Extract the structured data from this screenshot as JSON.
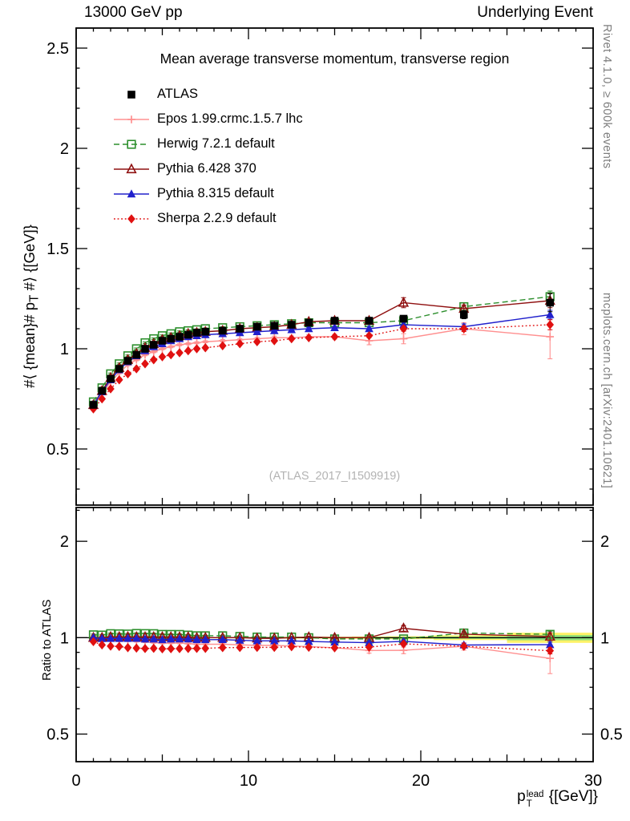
{
  "header": {
    "left": "13000 GeV pp",
    "right": "Underlying Event"
  },
  "side": {
    "top_right": "Rivet 4.1.0, ≥ 600k events",
    "bottom_right": "mcplots.cern.ch [arXiv:2401.10621]"
  },
  "main": {
    "title": "Mean average transverse momentum, transverse region",
    "watermark": "(ATLAS_2017_I1509919)"
  },
  "axes": {
    "y_label": {
      "prefix": "#⟨ {mean}# p",
      "sub": "T",
      "suffix": " #⟩ {[GeV]}"
    },
    "ratio_label": "Ratio to ATLAS",
    "x_label": {
      "base": "p",
      "sup": "lead",
      "sub": "T",
      "suffix": " {[GeV]}"
    }
  },
  "chart_data": {
    "type": "line",
    "title": "Mean average transverse momentum, transverse region",
    "xlabel": "pT lead [GeV]",
    "ylabel": "<mean pT> [GeV]",
    "ratio_ylabel": "Ratio to ATLAS",
    "legend_position": "top-left",
    "grid": false,
    "xlim": [
      0,
      30
    ],
    "ylim_main": [
      0.22,
      2.6
    ],
    "ylim_ratio": [
      0.41,
      2.55
    ],
    "ratio_log": true,
    "x_major_ticks": [
      0,
      10,
      20,
      30
    ],
    "x_medium_ticks": [
      5,
      15,
      25
    ],
    "x_minor_step": 1,
    "y_major_ticks": [
      0.5,
      1,
      1.5,
      2,
      2.5
    ],
    "y_minor_step": 0.1,
    "ratio_ticks": [
      0.5,
      1,
      2
    ],
    "ratio_minor_ticks": [
      0.6,
      0.7,
      0.8,
      0.9,
      2.5
    ],
    "band_color_outer": "#fff04d",
    "band_color_inner": "#7ddc7d",
    "reference": "ATLAS",
    "x": [
      1,
      1.5,
      2,
      2.5,
      3,
      3.5,
      4,
      4.5,
      5,
      5.5,
      6,
      6.5,
      7,
      7.5,
      8.5,
      9.5,
      10.5,
      11.5,
      12.5,
      13.5,
      15,
      17,
      19,
      22.5,
      27.5
    ],
    "series": [
      {
        "name": "ATLAS",
        "color": "#000000",
        "marker": "square-filled",
        "line": "none",
        "values": [
          0.72,
          0.79,
          0.85,
          0.9,
          0.94,
          0.97,
          1.0,
          1.02,
          1.04,
          1.05,
          1.06,
          1.07,
          1.08,
          1.085,
          1.09,
          1.1,
          1.11,
          1.115,
          1.12,
          1.13,
          1.14,
          1.14,
          1.15,
          1.17,
          1.23
        ],
        "errors": [
          0.005,
          0.005,
          0.005,
          0.005,
          0.005,
          0.005,
          0.005,
          0.005,
          0.005,
          0.005,
          0.005,
          0.005,
          0.005,
          0.005,
          0.005,
          0.005,
          0.005,
          0.006,
          0.007,
          0.007,
          0.008,
          0.01,
          0.012,
          0.02,
          0.045
        ]
      },
      {
        "name": "Epos 1.99.crmc.1.5.7 lhc",
        "color": "#ff9090",
        "marker": "cross-open",
        "line": "solid",
        "values": [
          0.71,
          0.775,
          0.835,
          0.88,
          0.92,
          0.945,
          0.97,
          0.985,
          1.0,
          1.01,
          1.02,
          1.025,
          1.03,
          1.035,
          1.04,
          1.045,
          1.05,
          1.055,
          1.055,
          1.06,
          1.06,
          1.04,
          1.05,
          1.1,
          1.06
        ],
        "errors": [
          0.005,
          0.005,
          0.005,
          0.005,
          0.005,
          0.005,
          0.005,
          0.005,
          0.005,
          0.005,
          0.005,
          0.005,
          0.005,
          0.005,
          0.006,
          0.006,
          0.007,
          0.008,
          0.009,
          0.01,
          0.012,
          0.02,
          0.025,
          0.03,
          0.11
        ]
      },
      {
        "name": "Herwig 7.2.1 default",
        "color": "#2d8f2d",
        "marker": "square-open",
        "line": "dashed",
        "values": [
          0.735,
          0.805,
          0.875,
          0.925,
          0.965,
          1.0,
          1.03,
          1.05,
          1.065,
          1.075,
          1.085,
          1.09,
          1.095,
          1.1,
          1.105,
          1.11,
          1.115,
          1.12,
          1.125,
          1.13,
          1.13,
          1.13,
          1.14,
          1.21,
          1.26
        ],
        "errors": [
          0.004,
          0.004,
          0.004,
          0.004,
          0.004,
          0.004,
          0.004,
          0.004,
          0.004,
          0.004,
          0.004,
          0.004,
          0.004,
          0.004,
          0.005,
          0.005,
          0.005,
          0.006,
          0.006,
          0.007,
          0.008,
          0.01,
          0.012,
          0.018,
          0.028
        ]
      },
      {
        "name": "Pythia 6.428 370",
        "color": "#8f1010",
        "marker": "triangle-open",
        "line": "solid",
        "values": [
          0.72,
          0.79,
          0.855,
          0.905,
          0.945,
          0.975,
          1.005,
          1.025,
          1.045,
          1.055,
          1.065,
          1.075,
          1.08,
          1.085,
          1.09,
          1.1,
          1.105,
          1.11,
          1.12,
          1.135,
          1.14,
          1.14,
          1.23,
          1.2,
          1.24
        ],
        "errors": [
          0.004,
          0.004,
          0.004,
          0.004,
          0.004,
          0.004,
          0.004,
          0.004,
          0.004,
          0.004,
          0.004,
          0.004,
          0.004,
          0.004,
          0.005,
          0.005,
          0.006,
          0.006,
          0.007,
          0.008,
          0.009,
          0.012,
          0.025,
          0.018,
          0.035
        ]
      },
      {
        "name": "Pythia 8.315 default",
        "color": "#2020cc",
        "marker": "triangle-filled",
        "line": "solid",
        "values": [
          0.72,
          0.785,
          0.845,
          0.895,
          0.935,
          0.965,
          0.99,
          1.01,
          1.025,
          1.04,
          1.05,
          1.06,
          1.065,
          1.07,
          1.075,
          1.08,
          1.085,
          1.09,
          1.095,
          1.1,
          1.105,
          1.1,
          1.12,
          1.11,
          1.17
        ],
        "errors": [
          0.004,
          0.004,
          0.004,
          0.004,
          0.004,
          0.004,
          0.004,
          0.004,
          0.004,
          0.004,
          0.004,
          0.004,
          0.004,
          0.004,
          0.004,
          0.005,
          0.005,
          0.005,
          0.006,
          0.006,
          0.007,
          0.009,
          0.012,
          0.014,
          0.022
        ]
      },
      {
        "name": "Sherpa 2.2.9 default",
        "color": "#e01010",
        "marker": "diamond-filled",
        "line": "dotted",
        "values": [
          0.7,
          0.75,
          0.8,
          0.845,
          0.875,
          0.9,
          0.925,
          0.945,
          0.96,
          0.97,
          0.98,
          0.99,
          1.0,
          1.005,
          1.015,
          1.025,
          1.035,
          1.04,
          1.05,
          1.055,
          1.06,
          1.065,
          1.1,
          1.1,
          1.12
        ],
        "errors": [
          0.004,
          0.004,
          0.004,
          0.004,
          0.004,
          0.004,
          0.004,
          0.004,
          0.004,
          0.004,
          0.004,
          0.004,
          0.004,
          0.004,
          0.004,
          0.005,
          0.005,
          0.005,
          0.006,
          0.006,
          0.007,
          0.009,
          0.012,
          0.014,
          0.025
        ]
      }
    ]
  }
}
